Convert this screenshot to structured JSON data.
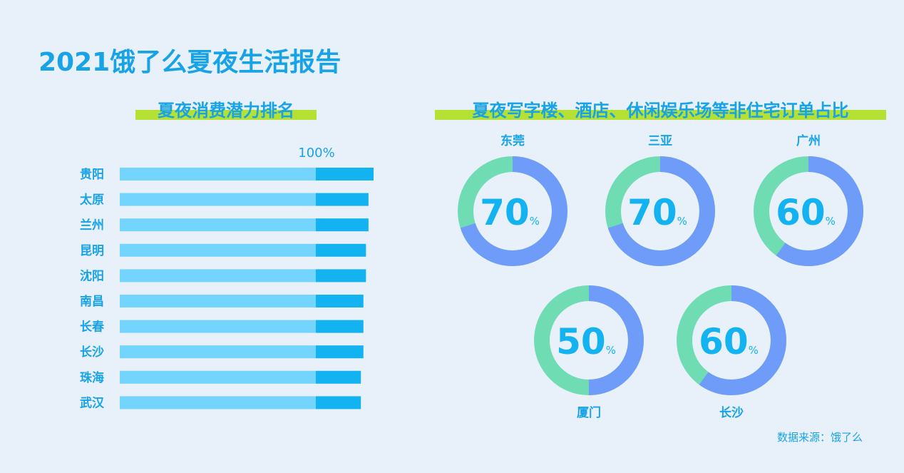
{
  "title": "2021饿了么夏夜生活报告",
  "colors": {
    "title": "#18a3e6",
    "bar_base": "#73d4fe",
    "bar_top": "#13b2f0",
    "donut_main": "#6f9cf8",
    "donut_rest": "#6fdcb4",
    "band": "#b5e034"
  },
  "source": "数据来源：饿了么",
  "chart_data": [
    {
      "type": "bar",
      "title": "夏夜消费潜力排名",
      "orientation": "horizontal",
      "scale_label": "100%",
      "categories": [
        "贵阳",
        "太原",
        "兰州",
        "昆明",
        "沈阳",
        "南昌",
        "长春",
        "长沙",
        "珠海",
        "武汉"
      ],
      "values": [
        100,
        98,
        98,
        97,
        97,
        96,
        96,
        96,
        95,
        95
      ],
      "xlim": [
        0,
        100
      ]
    },
    {
      "type": "pie",
      "title": "夏夜写字楼、酒店、休闲娱乐场等非住宅订单占比",
      "donut": true,
      "unit": "%",
      "items": [
        {
          "city": "东莞",
          "value": 70
        },
        {
          "city": "三亚",
          "value": 70
        },
        {
          "city": "广州",
          "value": 60
        },
        {
          "city": "厦门",
          "value": 50
        },
        {
          "city": "长沙",
          "value": 60
        }
      ]
    }
  ]
}
